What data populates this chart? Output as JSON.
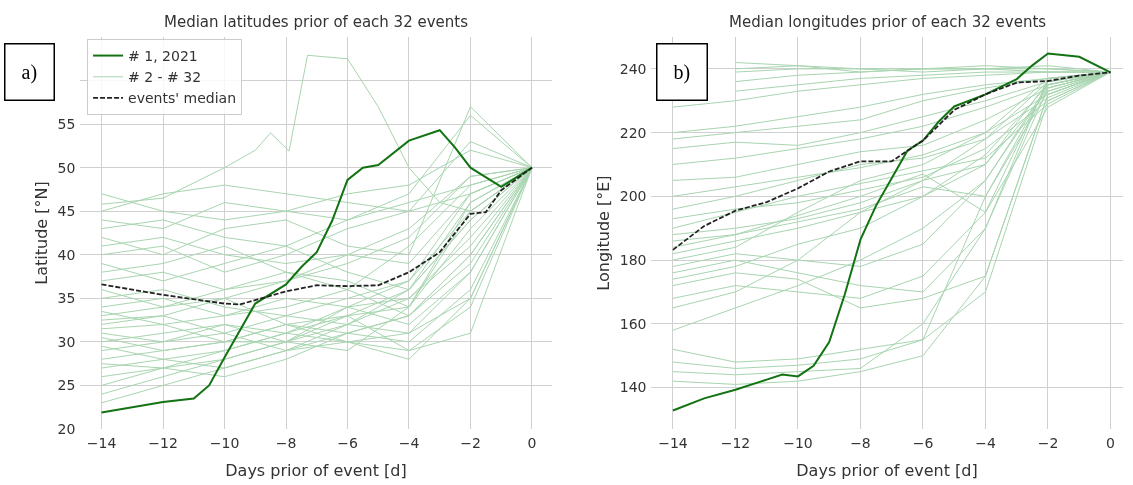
{
  "chart_data": [
    {
      "type": "line",
      "title": "Median latitudes prior of each 32 events",
      "xlabel": "Days prior of event [d]",
      "ylabel": "Latitude [°N]",
      "xlim": [
        -14.7,
        0.65
      ],
      "xticks": [
        -14,
        -12,
        -10,
        -8,
        -6,
        -4,
        -2,
        0
      ],
      "ylim": [
        20,
        65
      ],
      "yticks": [
        20,
        25,
        30,
        35,
        40,
        45,
        50,
        55,
        {
          "value": 60,
          "label": null
        }
      ],
      "grid": true,
      "legend": "top left",
      "annotations": [
        "a)"
      ],
      "x": [
        -14,
        -12,
        -10,
        -8,
        -6,
        -4,
        -2,
        0
      ],
      "series": [
        {
          "name": "# 1, 2021",
          "color": "#137313",
          "line_style": "solid",
          "x": [
            -14,
            -12,
            -11,
            -10.5,
            -10,
            -9,
            -8,
            -7.5,
            -7,
            -6.5,
            -6,
            -5.5,
            -5,
            -4,
            -3,
            -2.5,
            -2,
            -1,
            0
          ],
          "values": [
            21.9,
            23.1,
            23.5,
            25.0,
            28.2,
            34.4,
            36.6,
            38.6,
            40.3,
            43.9,
            48.6,
            50.0,
            50.3,
            53.1,
            54.3,
            52.3,
            50.0,
            47.8,
            50
          ]
        },
        {
          "name": "# 2 - # 32",
          "color": "#a8d5b0",
          "line_style": "solid",
          "x": [
            -14,
            -12,
            -10,
            -9,
            -8.5,
            -7.9,
            -7.3,
            -6,
            -5,
            -4,
            -3,
            -2,
            0
          ],
          "values": [
            45.8,
            46.5,
            50,
            52,
            54,
            51.9,
            62.9,
            62.5,
            57,
            50,
            46,
            45,
            50
          ]
        },
        {
          "color": "#a8d5b0",
          "line_style": "solid",
          "values": [
            47,
            45,
            44,
            45,
            44,
            46,
            48,
            50
          ]
        },
        {
          "color": "#a8d5b0",
          "line_style": "solid",
          "values": [
            45,
            47,
            48,
            47,
            46,
            45,
            47,
            50
          ]
        },
        {
          "color": "#a8d5b0",
          "line_style": "solid",
          "values": [
            44,
            43,
            46,
            45,
            47,
            48,
            52,
            50
          ]
        },
        {
          "color": "#a8d5b0",
          "line_style": "solid",
          "values": [
            43,
            44,
            42,
            41,
            44,
            47,
            56,
            50
          ]
        },
        {
          "color": "#a8d5b0",
          "line_style": "solid",
          "values": [
            42,
            40,
            43,
            44,
            41,
            40,
            57,
            50
          ]
        },
        {
          "color": "#a8d5b0",
          "line_style": "solid",
          "values": [
            41,
            42,
            40,
            39,
            40,
            43,
            49,
            50
          ]
        },
        {
          "color": "#a8d5b0",
          "line_style": "solid",
          "values": [
            40,
            41,
            38,
            40,
            43,
            45,
            53,
            50
          ]
        },
        {
          "color": "#a8d5b0",
          "line_style": "solid",
          "values": [
            39,
            37,
            39,
            41,
            38,
            36,
            46,
            50
          ]
        },
        {
          "color": "#a8d5b0",
          "line_style": "solid",
          "values": [
            38,
            39,
            41,
            38,
            36,
            41,
            48,
            50
          ]
        },
        {
          "color": "#a8d5b0",
          "line_style": "solid",
          "values": [
            37,
            38,
            36,
            37,
            40,
            39,
            47,
            50
          ]
        },
        {
          "color": "#a8d5b0",
          "line_style": "solid",
          "values": [
            36,
            34,
            36,
            38,
            37,
            34,
            43,
            50
          ]
        },
        {
          "color": "#a8d5b0",
          "line_style": "solid",
          "values": [
            35,
            36,
            34,
            33,
            35,
            37,
            45,
            50
          ]
        },
        {
          "color": "#a8d5b0",
          "line_style": "solid",
          "values": [
            34,
            35,
            33,
            35,
            34,
            32,
            38,
            50
          ]
        },
        {
          "color": "#a8d5b0",
          "line_style": "solid",
          "values": [
            33,
            34,
            35,
            32,
            33,
            36,
            44,
            50
          ]
        },
        {
          "color": "#a8d5b0",
          "line_style": "solid",
          "values": [
            33.5,
            32,
            33,
            34,
            36,
            33,
            40,
            50
          ]
        },
        {
          "color": "#a8d5b0",
          "line_style": "solid",
          "values": [
            32,
            33,
            31,
            33,
            32,
            31,
            35,
            50
          ]
        },
        {
          "color": "#a8d5b0",
          "line_style": "solid",
          "values": [
            31,
            30,
            32,
            31,
            34,
            35,
            42,
            50
          ]
        },
        {
          "color": "#a8d5b0",
          "line_style": "solid",
          "values": [
            31.5,
            32,
            30,
            32,
            31,
            30,
            36,
            50
          ]
        },
        {
          "color": "#a8d5b0",
          "line_style": "solid",
          "values": [
            30,
            31,
            32,
            30,
            33,
            34,
            46,
            50
          ]
        },
        {
          "color": "#a8d5b0",
          "line_style": "solid",
          "values": [
            30.5,
            29,
            30,
            32,
            30,
            29,
            34,
            50
          ]
        },
        {
          "color": "#a8d5b0",
          "line_style": "solid",
          "values": [
            29,
            30,
            31,
            29,
            31,
            33,
            39,
            50
          ]
        },
        {
          "color": "#a8d5b0",
          "line_style": "solid",
          "values": [
            29.5,
            28,
            29,
            31,
            33,
            29,
            31,
            50
          ]
        },
        {
          "color": "#a8d5b0",
          "line_style": "solid",
          "values": [
            28,
            29,
            30,
            30,
            32,
            36,
            44,
            50
          ]
        },
        {
          "color": "#a8d5b0",
          "line_style": "solid",
          "values": [
            27,
            28,
            27,
            29,
            30,
            31,
            38,
            50
          ]
        },
        {
          "color": "#a8d5b0",
          "line_style": "solid",
          "values": [
            27.5,
            27,
            28,
            30,
            34,
            37,
            47,
            50
          ]
        },
        {
          "color": "#a8d5b0",
          "line_style": "solid",
          "values": [
            26,
            27,
            29,
            31,
            30,
            28,
            35,
            50
          ]
        },
        {
          "color": "#a8d5b0",
          "line_style": "solid",
          "values": [
            25,
            27,
            26,
            28,
            31,
            33,
            40,
            50
          ]
        },
        {
          "color": "#a8d5b0",
          "line_style": "solid",
          "values": [
            24,
            26,
            28,
            30,
            29,
            34,
            45,
            50
          ]
        },
        {
          "color": "#a8d5b0",
          "line_style": "solid",
          "values": [
            23,
            25,
            27,
            29,
            32,
            35,
            41,
            50
          ]
        },
        {
          "color": "#a8d5b0",
          "line_style": "solid",
          "values": [
            32.5,
            33,
            35,
            37,
            39,
            42,
            49,
            50
          ]
        },
        {
          "name": "events' median",
          "color": "#222222",
          "line_style": "dashed",
          "x": [
            -14,
            -12,
            -10,
            -9.5,
            -9,
            -8,
            -7,
            -6,
            -5,
            -4,
            -3,
            -2,
            -1.5,
            -1,
            0
          ],
          "values": [
            36.6,
            35.4,
            34.4,
            34.3,
            34.8,
            35.8,
            36.5,
            36.4,
            36.5,
            38,
            40.3,
            44.7,
            44.9,
            47.4,
            50
          ]
        }
      ]
    },
    {
      "type": "line",
      "title": "Median longitudes prior of each 32 events",
      "xlabel": "Days prior of event [d]",
      "ylabel": "Longitude [°E]",
      "xlim": [
        -14.7,
        0.4
      ],
      "xticks": [
        -14,
        -12,
        -10,
        -8,
        -6,
        -4,
        -2,
        0
      ],
      "ylim": [
        127,
        250
      ],
      "yticks": [
        140,
        160,
        180,
        200,
        220,
        240
      ],
      "grid": true,
      "annotations": [
        "b)"
      ],
      "x": [
        -14,
        -12,
        -10,
        -8,
        -6,
        -4,
        -2,
        0
      ],
      "series": [
        {
          "color": "#a8d5b0",
          "line_style": "solid",
          "values": [
            null,
            242,
            241,
            240,
            240,
            240,
            240,
            239
          ]
        },
        {
          "color": "#a8d5b0",
          "line_style": "solid",
          "values": [
            null,
            240,
            241,
            239,
            240,
            241,
            240,
            239
          ]
        },
        {
          "color": "#a8d5b0",
          "line_style": "solid",
          "values": [
            null,
            239,
            240,
            240,
            239,
            240,
            241,
            239
          ]
        },
        {
          "color": "#a8d5b0",
          "line_style": "solid",
          "values": [
            null,
            236,
            238,
            239,
            240,
            240,
            239,
            239
          ]
        },
        {
          "color": "#a8d5b0",
          "line_style": "solid",
          "values": [
            null,
            233,
            235,
            237,
            238,
            239,
            239,
            239
          ]
        },
        {
          "color": "#a8d5b0",
          "line_style": "solid",
          "values": [
            228,
            230,
            233,
            235,
            237,
            238,
            239,
            239
          ]
        },
        {
          "color": "#a8d5b0",
          "line_style": "solid",
          "values": [
            220,
            222,
            225,
            228,
            232,
            235,
            237,
            239
          ]
        },
        {
          "color": "#a8d5b0",
          "line_style": "solid",
          "values": [
            218,
            220,
            222,
            224,
            230,
            234,
            237,
            239
          ]
        },
        {
          "color": "#a8d5b0",
          "line_style": "solid",
          "values": [
            215,
            217,
            216,
            220,
            225,
            230,
            236,
            239
          ]
        },
        {
          "color": "#a8d5b0",
          "line_style": "solid",
          "values": [
            210,
            212,
            215,
            218,
            222,
            228,
            235,
            239
          ]
        },
        {
          "color": "#a8d5b0",
          "line_style": "solid",
          "values": [
            205,
            206,
            210,
            214,
            216,
            224,
            234,
            239
          ]
        },
        {
          "color": "#a8d5b0",
          "line_style": "solid",
          "values": [
            200,
            203,
            206,
            209,
            213,
            220,
            232,
            239
          ]
        },
        {
          "color": "#a8d5b0",
          "line_style": "solid",
          "values": [
            196,
            200,
            205,
            210,
            212,
            218,
            231,
            239
          ]
        },
        {
          "color": "#a8d5b0",
          "line_style": "solid",
          "values": [
            193,
            196,
            198,
            202,
            206,
            215,
            230,
            239
          ]
        },
        {
          "color": "#a8d5b0",
          "line_style": "solid",
          "values": [
            190,
            195,
            200,
            204,
            208,
            212,
            229,
            239
          ]
        },
        {
          "color": "#a8d5b0",
          "line_style": "solid",
          "values": [
            188,
            190,
            193,
            198,
            205,
            210,
            236,
            239
          ]
        },
        {
          "color": "#a8d5b0",
          "line_style": "solid",
          "values": [
            186,
            188,
            192,
            196,
            203,
            200,
            233,
            239
          ]
        },
        {
          "color": "#a8d5b0",
          "line_style": "solid",
          "values": [
            184,
            188,
            194,
            200,
            207,
            195,
            228,
            239
          ]
        },
        {
          "color": "#a8d5b0",
          "line_style": "solid",
          "values": [
            182,
            186,
            190,
            195,
            200,
            213,
            235,
            239
          ]
        },
        {
          "color": "#a8d5b0",
          "line_style": "solid",
          "values": [
            180,
            184,
            195,
            205,
            210,
            220,
            237,
            239
          ]
        },
        {
          "color": "#a8d5b0",
          "line_style": "solid",
          "values": [
            178,
            182,
            180,
            178,
            185,
            205,
            235,
            239
          ]
        },
        {
          "color": "#a8d5b0",
          "line_style": "solid",
          "values": [
            176,
            180,
            176,
            172,
            170,
            190,
            234,
            239
          ]
        },
        {
          "color": "#a8d5b0",
          "line_style": "solid",
          "values": [
            174,
            178,
            185,
            190,
            200,
            210,
            233,
            239
          ]
        },
        {
          "color": "#a8d5b0",
          "line_style": "solid",
          "values": [
            172,
            176,
            174,
            165,
            168,
            175,
            232,
            239
          ]
        },
        {
          "color": "#a8d5b0",
          "line_style": "solid",
          "values": [
            168,
            172,
            170,
            168,
            175,
            195,
            236,
            239
          ]
        },
        {
          "color": "#a8d5b0",
          "line_style": "solid",
          "values": [
            165,
            170,
            180,
            195,
            205,
            218,
            236,
            239
          ]
        },
        {
          "color": "#a8d5b0",
          "line_style": "solid",
          "values": [
            158,
            165,
            172,
            180,
            190,
            205,
            234,
            239
          ]
        },
        {
          "color": "#a8d5b0",
          "line_style": "solid",
          "values": [
            152,
            148,
            149,
            152,
            155,
            200,
            235,
            239
          ]
        },
        {
          "color": "#a8d5b0",
          "line_style": "solid",
          "values": [
            148,
            146,
            147,
            149,
            155,
            170,
            230,
            239
          ]
        },
        {
          "color": "#a8d5b0",
          "line_style": "solid",
          "values": [
            145,
            144,
            145,
            146,
            160,
            190,
            237,
            239
          ]
        },
        {
          "color": "#a8d5b0",
          "line_style": "solid",
          "values": [
            142,
            141,
            142,
            145,
            150,
            175,
            232,
            239
          ]
        },
        {
          "color": "#137313",
          "line_style": "solid",
          "x": [
            -14,
            -13,
            -12,
            -11,
            -10.5,
            -10,
            -9.5,
            -9,
            -8.5,
            -8,
            -7.5,
            -7,
            -6.5,
            -6,
            -5.5,
            -5,
            -4,
            -3,
            -2.5,
            -2,
            -1,
            0
          ],
          "values": [
            132.8,
            136.6,
            139.3,
            142.5,
            144.1,
            143.5,
            146.8,
            154.3,
            169.3,
            186.4,
            197.1,
            205.7,
            214.3,
            217.5,
            223.4,
            228.2,
            232,
            236.8,
            241.1,
            244.8,
            243.8,
            238.9
          ]
        },
        {
          "color": "#222222",
          "line_style": "dashed",
          "x": [
            -14,
            -13,
            -12,
            -11,
            -10,
            -9,
            -8,
            -7,
            -6,
            -5,
            -4,
            -3,
            -2,
            -1,
            0
          ],
          "values": [
            183.2,
            190.7,
            195.5,
            198.2,
            202.5,
            207.8,
            211,
            211,
            217.5,
            227.1,
            232,
            235.7,
            236.2,
            237.9,
            238.9
          ]
        }
      ]
    }
  ]
}
